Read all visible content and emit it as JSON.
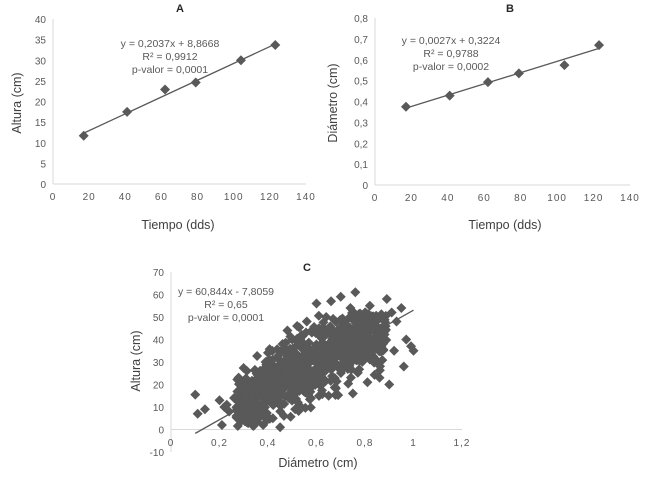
{
  "marker_color": "#595959",
  "axis_color": "#d9d9d9",
  "chart_data": [
    {
      "id": "A",
      "type": "scatter",
      "title": "A",
      "xlabel": "Tiempo (dds)",
      "ylabel": "Altura (cm)",
      "xlim": [
        0,
        140
      ],
      "ylim": [
        0,
        40
      ],
      "xticks": [
        "0",
        "20",
        "40",
        "60",
        "80",
        "100",
        "120",
        "140"
      ],
      "xtick_values": [
        0,
        20,
        40,
        60,
        80,
        100,
        120,
        140
      ],
      "yticks": [
        "0",
        "5",
        "10",
        "15",
        "20",
        "25",
        "30",
        "35",
        "40"
      ],
      "ytick_values": [
        0,
        5,
        10,
        15,
        20,
        25,
        30,
        35,
        40
      ],
      "grid": false,
      "series": [
        {
          "name": "Altura",
          "x": [
            17,
            41,
            62,
            79,
            104,
            123
          ],
          "y": [
            11.7,
            17.5,
            22.9,
            24.6,
            30.0,
            33.7
          ]
        }
      ],
      "trendline": {
        "slope": 0.2037,
        "intercept": 8.8668,
        "x_range": [
          17,
          123
        ]
      },
      "annotations": [
        "y = 0,2037x + 8,8668",
        "R² = 0,9912",
        "p-valor = 0,0001"
      ]
    },
    {
      "id": "B",
      "type": "scatter",
      "title": "B",
      "xlabel": "Tiempo (dds)",
      "ylabel": "Diámetro (cm)",
      "xlim": [
        0,
        140
      ],
      "ylim": [
        0,
        0.8
      ],
      "xticks": [
        "0",
        "20",
        "40",
        "60",
        "80",
        "100",
        "120",
        "140"
      ],
      "xtick_values": [
        0,
        20,
        40,
        60,
        80,
        100,
        120,
        140
      ],
      "yticks": [
        "0",
        "0,1",
        "0,2",
        "0,3",
        "0,4",
        "0,5",
        "0,6",
        "0,7",
        "0,8"
      ],
      "ytick_values": [
        0,
        0.1,
        0.2,
        0.3,
        0.4,
        0.5,
        0.6,
        0.7,
        0.8
      ],
      "grid": false,
      "series": [
        {
          "name": "Diámetro",
          "x": [
            17,
            41,
            62,
            79,
            104,
            123
          ],
          "y": [
            0.375,
            0.428,
            0.493,
            0.535,
            0.574,
            0.67
          ]
        }
      ],
      "trendline": {
        "slope": 0.0027,
        "intercept": 0.3224,
        "x_range": [
          17,
          123
        ]
      },
      "annotations": [
        "y = 0,0027x + 0,3224",
        "R² = 0,9788",
        "p-valor = 0,0002"
      ]
    },
    {
      "id": "C",
      "type": "scatter",
      "title": "C",
      "xlabel": "Diámetro (cm)",
      "ylabel": "Altura (cm)",
      "xlim": [
        0,
        1.2
      ],
      "ylim": [
        -10,
        70
      ],
      "xticks": [
        "0",
        "0,2",
        "0,4",
        "0,6",
        "0,8",
        "1",
        "1,2"
      ],
      "xtick_values": [
        0,
        0.2,
        0.4,
        0.6,
        0.8,
        1.0,
        1.2
      ],
      "yticks": [
        "-10",
        "0",
        "10",
        "20",
        "30",
        "40",
        "50",
        "60",
        "70"
      ],
      "ytick_values": [
        -10,
        0,
        10,
        20,
        30,
        40,
        50,
        60,
        70
      ],
      "grid": false,
      "series": [
        {
          "name": "Altura vs Diámetro",
          "x": [
            0.1,
            0.11,
            0.14,
            0.2,
            0.21,
            0.22,
            0.23,
            0.24,
            0.26,
            0.27,
            0.28,
            0.3,
            0.31,
            0.32,
            0.33,
            0.35,
            0.36,
            0.37,
            0.38,
            0.39,
            0.4,
            0.41,
            0.42,
            0.43,
            0.44,
            0.45,
            0.46,
            0.47,
            0.48,
            0.5,
            0.51,
            0.52,
            0.54,
            0.55,
            0.56,
            0.58,
            0.6,
            0.61,
            0.62,
            0.64,
            0.65,
            0.66,
            0.68,
            0.7,
            0.71,
            0.72,
            0.74,
            0.75,
            0.76,
            0.78,
            0.8,
            0.81,
            0.82,
            0.84,
            0.85,
            0.86,
            0.88,
            0.89,
            0.9,
            0.91,
            0.92,
            0.93,
            0.95,
            0.96,
            0.97,
            0.99,
            1.0
          ],
          "y": [
            15.5,
            7,
            9,
            13,
            2,
            10,
            11,
            8,
            14,
            6,
            12,
            18,
            4,
            16,
            20,
            10,
            22,
            25,
            2,
            30,
            28,
            35,
            5,
            20,
            32,
            1,
            38,
            24,
            44,
            40,
            30,
            46,
            42,
            36,
            48,
            34,
            56,
            45,
            38,
            50,
            15,
            57,
            42,
            59,
            38,
            47,
            54,
            16,
            61,
            33,
            52,
            21,
            55,
            30,
            49,
            23,
            45,
            58,
            20,
            52,
            35,
            48,
            54,
            28,
            40,
            37,
            35
          ]
        }
      ],
      "trendline": {
        "slope": 60.844,
        "intercept": -7.8059,
        "x_range": [
          0.1,
          1.0
        ]
      },
      "annotations": [
        "y = 60,844x - 7,8059",
        "R² = 0,65",
        "p-valor = 0,0001"
      ]
    }
  ]
}
